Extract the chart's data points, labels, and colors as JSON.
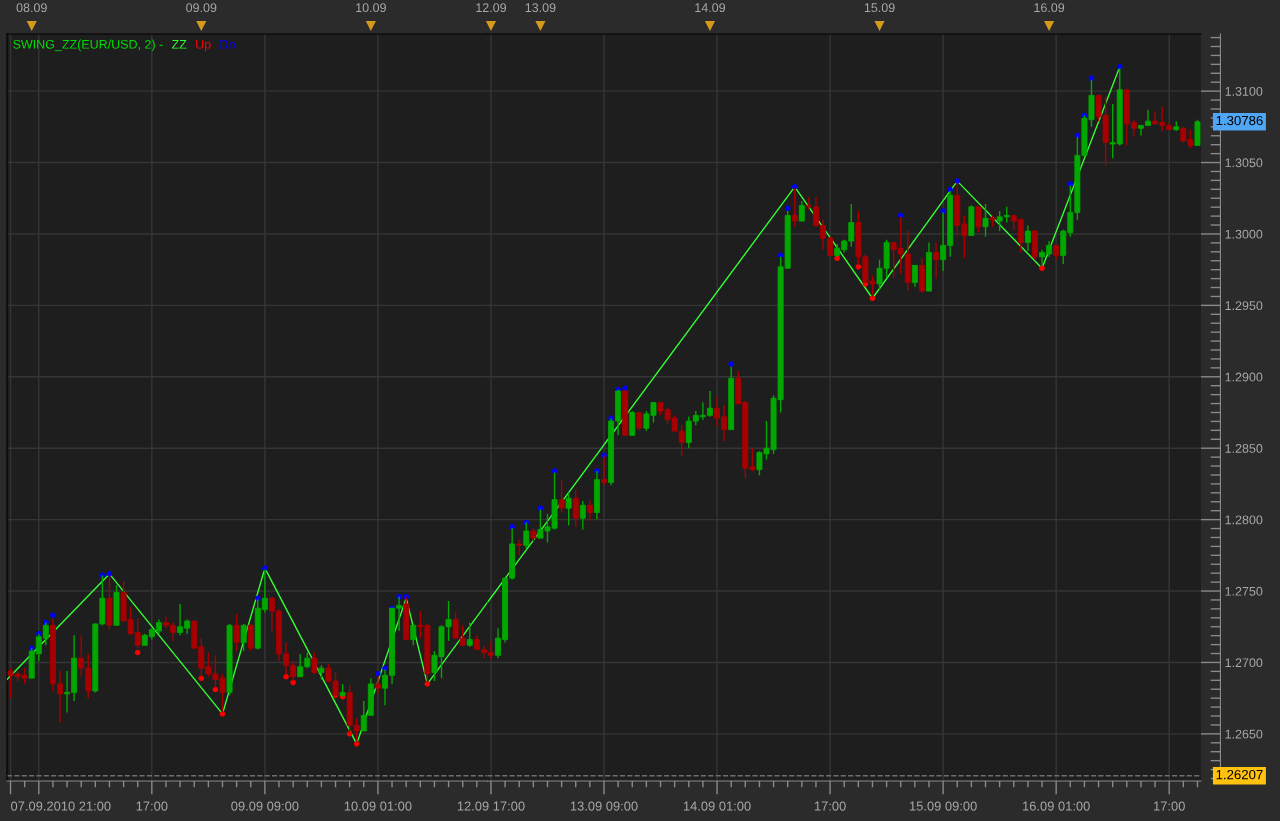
{
  "chart_data": [
    {
      "type": "candlestick",
      "legend_title": "SWING_ZZ(EUR/USD, 2) -",
      "legend": "top left",
      "x": [
        "2010-09-07T21:00",
        "2010-09-07T22:00",
        "2010-09-07T23:00",
        "2010-09-08T00:00",
        "2010-09-08T01:00",
        "2010-09-08T02:00",
        "2010-09-08T03:00",
        "2010-09-08T04:00",
        "2010-09-08T05:00",
        "2010-09-08T06:00",
        "2010-09-08T07:00",
        "2010-09-08T08:00",
        "2010-09-08T09:00",
        "2010-09-08T10:00",
        "2010-09-08T11:00",
        "2010-09-08T12:00",
        "2010-09-08T13:00",
        "2010-09-08T14:00",
        "2010-09-08T15:00",
        "2010-09-08T16:00",
        "2010-09-08T17:00",
        "2010-09-08T18:00",
        "2010-09-08T19:00",
        "2010-09-08T20:00",
        "2010-09-08T21:00",
        "2010-09-08T22:00",
        "2010-09-08T23:00",
        "2010-09-09T00:00",
        "2010-09-09T01:00",
        "2010-09-09T02:00",
        "2010-09-09T03:00",
        "2010-09-09T04:00",
        "2010-09-09T05:00",
        "2010-09-09T06:00",
        "2010-09-09T07:00",
        "2010-09-09T08:00",
        "2010-09-09T09:00",
        "2010-09-09T10:00",
        "2010-09-09T11:00",
        "2010-09-09T12:00",
        "2010-09-09T13:00",
        "2010-09-09T14:00",
        "2010-09-09T15:00",
        "2010-09-09T16:00",
        "2010-09-09T17:00",
        "2010-09-09T18:00",
        "2010-09-09T19:00",
        "2010-09-09T20:00",
        "2010-09-09T21:00",
        "2010-09-09T22:00",
        "2010-09-09T23:00",
        "2010-09-10T00:00",
        "2010-09-10T01:00",
        "2010-09-10T02:00",
        "2010-09-10T03:00",
        "2010-09-10T04:00",
        "2010-09-10T05:00",
        "2010-09-10T06:00",
        "2010-09-10T07:00",
        "2010-09-10T08:00",
        "2010-09-10T09:00",
        "2010-09-10T10:00",
        "2010-09-10T11:00",
        "2010-09-10T12:00",
        "2010-09-10T13:00",
        "2010-09-10T14:00",
        "2010-09-10T15:00",
        "2010-09-10T16:00"
      ],
      "ohlc": [
        [
          1.2694,
          1.2696,
          1.2675,
          1.2691
        ],
        [
          1.2692,
          1.2694,
          1.2687,
          1.269
        ],
        [
          1.2691,
          1.2696,
          1.2685,
          1.2689
        ],
        [
          1.2689,
          1.271,
          1.2689,
          1.2708
        ],
        [
          1.2706,
          1.272,
          1.2701,
          1.2718
        ],
        [
          1.2717,
          1.2728,
          1.2712,
          1.2726
        ],
        [
          1.2726,
          1.2731,
          1.268,
          1.2685
        ],
        [
          1.2685,
          1.2694,
          1.2658,
          1.2678
        ],
        [
          1.2678,
          1.2694,
          1.2665,
          1.2679
        ],
        [
          1.2679,
          1.2719,
          1.2673,
          1.2703
        ],
        [
          1.2703,
          1.2719,
          1.269,
          1.2696
        ],
        [
          1.2696,
          1.2706,
          1.2675,
          1.268
        ],
        [
          1.268,
          1.2727,
          1.2679,
          1.2727
        ],
        [
          1.2727,
          1.2761,
          1.2726,
          1.2745
        ],
        [
          1.2745,
          1.2761,
          1.2723,
          1.2726
        ],
        [
          1.2726,
          1.2754,
          1.2726,
          1.2749
        ],
        [
          1.2749,
          1.2757,
          1.2729,
          1.2729
        ],
        [
          1.273,
          1.2739,
          1.272,
          1.272
        ],
        [
          1.2721,
          1.2731,
          1.271,
          1.2712
        ],
        [
          1.2712,
          1.272,
          1.2712,
          1.2719
        ],
        [
          1.2718,
          1.2724,
          1.2716,
          1.2723
        ],
        [
          1.2722,
          1.273,
          1.272,
          1.2728
        ],
        [
          1.2728,
          1.2732,
          1.2724,
          1.2726
        ],
        [
          1.2726,
          1.2728,
          1.2715,
          1.2721
        ],
        [
          1.2721,
          1.2741,
          1.2719,
          1.2725
        ],
        [
          1.2724,
          1.273,
          1.272,
          1.2729
        ],
        [
          1.2729,
          1.2729,
          1.271,
          1.271
        ],
        [
          1.2711,
          1.2717,
          1.269,
          1.2696
        ],
        [
          1.2697,
          1.2707,
          1.269,
          1.2692
        ],
        [
          1.2692,
          1.2705,
          1.2682,
          1.2688
        ],
        [
          1.2689,
          1.2692,
          1.2665,
          1.2679
        ],
        [
          1.2679,
          1.2727,
          1.2677,
          1.2726
        ],
        [
          1.2726,
          1.2734,
          1.2708,
          1.2714
        ],
        [
          1.2714,
          1.2727,
          1.2708,
          1.2726
        ],
        [
          1.2726,
          1.2727,
          1.2708,
          1.271
        ],
        [
          1.271,
          1.2744,
          1.2709,
          1.2738
        ],
        [
          1.2737,
          1.2765,
          1.2735,
          1.2745
        ],
        [
          1.2745,
          1.2746,
          1.2722,
          1.2736
        ],
        [
          1.2736,
          1.2737,
          1.2701,
          1.2706
        ],
        [
          1.2706,
          1.2714,
          1.2692,
          1.2698
        ],
        [
          1.2698,
          1.2701,
          1.2687,
          1.269
        ],
        [
          1.269,
          1.2706,
          1.269,
          1.2697
        ],
        [
          1.2697,
          1.2707,
          1.2696,
          1.2703
        ],
        [
          1.2703,
          1.2707,
          1.2692,
          1.2693
        ],
        [
          1.2693,
          1.2698,
          1.2688,
          1.2696
        ],
        [
          1.2696,
          1.2699,
          1.2686,
          1.2687
        ],
        [
          1.2687,
          1.2693,
          1.2676,
          1.2677
        ],
        [
          1.2677,
          1.2685,
          1.2676,
          1.2679
        ],
        [
          1.2679,
          1.2684,
          1.265,
          1.2656
        ],
        [
          1.2656,
          1.2661,
          1.2644,
          1.2652
        ],
        [
          1.2652,
          1.2673,
          1.2652,
          1.2663
        ],
        [
          1.2663,
          1.2689,
          1.2663,
          1.2685
        ],
        [
          1.2685,
          1.2691,
          1.2678,
          1.2682
        ],
        [
          1.2682,
          1.2695,
          1.267,
          1.2691
        ],
        [
          1.2691,
          1.2738,
          1.2685,
          1.2738
        ],
        [
          1.2738,
          1.2746,
          1.2722,
          1.274
        ],
        [
          1.2741,
          1.2746,
          1.2716,
          1.2716
        ],
        [
          1.2716,
          1.2726,
          1.2712,
          1.2726
        ],
        [
          1.2726,
          1.2736,
          1.2717,
          1.2725
        ],
        [
          1.2726,
          1.2727,
          1.2686,
          1.2692
        ],
        [
          1.2693,
          1.2708,
          1.2687,
          1.2705
        ],
        [
          1.2704,
          1.2726,
          1.2689,
          1.2725
        ],
        [
          1.2725,
          1.2743,
          1.2715,
          1.273
        ],
        [
          1.273,
          1.2735,
          1.2717,
          1.2717
        ],
        [
          1.2717,
          1.2726,
          1.2712,
          1.2712
        ],
        [
          1.2712,
          1.2728,
          1.2711,
          1.2716
        ],
        [
          1.2716,
          1.2719,
          1.2709,
          1.2709
        ],
        [
          1.2709,
          1.2712,
          1.2703,
          1.2707
        ]
      ],
      "colors": [
        "#a80000",
        "#a80000",
        "#a80000",
        "#00a800",
        "#00a800",
        "#00a800",
        "#a80000",
        "#a80000",
        "#00a800",
        "#00a800",
        "#a80000",
        "#a80000",
        "#00a800",
        "#00a800",
        "#a80000",
        "#00a800",
        "#a80000",
        "#a80000",
        "#a80000",
        "#00a800",
        "#00a800",
        "#00a800",
        "#a80000",
        "#a80000",
        "#00a800",
        "#00a800",
        "#a80000",
        "#a80000",
        "#a80000",
        "#a80000",
        "#a80000",
        "#00a800",
        "#a80000",
        "#00a800",
        "#a80000",
        "#00a800",
        "#00a800",
        "#a80000",
        "#a80000",
        "#a80000",
        "#a80000",
        "#00a800",
        "#00a800",
        "#a80000",
        "#00a800",
        "#a80000",
        "#a80000",
        "#00a800",
        "#a80000",
        "#a80000",
        "#00a800",
        "#00a800",
        "#a80000",
        "#00a800",
        "#00a800",
        "#00a800",
        "#a80000",
        "#00a800",
        "#a80000",
        "#a80000",
        "#00a800",
        "#00a800",
        "#00a800",
        "#a80000",
        "#a80000",
        "#00a800",
        "#a80000",
        "#a80000"
      ],
      "series": [
        {
          "name": "ZZ",
          "type": "line",
          "color": "#33ff33",
          "x": [
            "2010-09-07T20:30",
            "2010-09-08T11:00",
            "2010-09-09T03:00",
            "2010-09-09T09:00",
            "2010-09-09T22:00",
            "2010-09-10T05:00",
            "2010-09-10T08:00",
            "2010-09-10T16:30"
          ],
          "values": [
            1.2688,
            1.2762,
            1.2664,
            1.2766,
            1.2643,
            1.2745,
            1.2685,
            1.2742
          ]
        },
        {
          "name": "Up",
          "type": "scatter",
          "marker": "circle",
          "color": "#ff0000",
          "x": [
            "2010-09-08T15:00",
            "2010-09-09T00:00",
            "2010-09-09T02:00",
            "2010-09-09T03:00",
            "2010-09-09T12:00",
            "2010-09-09T13:00",
            "2010-09-09T19:00",
            "2010-09-09T20:00",
            "2010-09-09T21:00",
            "2010-09-09T22:00",
            "2010-09-10T08:00"
          ],
          "values": [
            1.2707,
            1.2689,
            1.2681,
            1.2664,
            1.269,
            1.2686,
            1.2677,
            1.2676,
            1.265,
            1.2643,
            1.2685
          ]
        },
        {
          "name": "Dn",
          "type": "scatter",
          "marker": "circle",
          "color": "#0000ff",
          "x": [
            "2010-09-08T00:00",
            "2010-09-08T01:00",
            "2010-09-08T02:00",
            "2010-09-08T03:00",
            "2010-09-08T10:00",
            "2010-09-08T11:00",
            "2010-09-09T08:00",
            "2010-09-09T09:00",
            "2010-09-10T01:00",
            "2010-09-10T02:00",
            "2010-09-10T03:00",
            "2010-09-10T04:00",
            "2010-09-10T05:00"
          ],
          "values": [
            1.271,
            1.272,
            1.2728,
            1.2733,
            1.2761,
            1.2762,
            1.2745,
            1.2766,
            1.2692,
            1.2696,
            1.2738,
            1.2746,
            1.2746
          ]
        }
      ],
      "xlim": [
        "2010-09-07T20:30",
        "2010-09-10T16:30"
      ],
      "xticks": [
        {
          "value": "2010-09-07T21:00",
          "label": "07.09.2010 21:00"
        },
        {
          "value": "2010-09-08T01:00",
          "label": null
        },
        {
          "value": "2010-09-08T17:00",
          "label": "17:00"
        },
        {
          "value": "2010-09-09T09:00",
          "label": "09.09 09:00"
        },
        {
          "value": "2010-09-10T01:00",
          "label": "10.09 01:00"
        }
      ],
      "x2lim": [
        "2010-09-07T20:30",
        "2010-09-10T16:30"
      ],
      "x2ticks": [
        {
          "value": "2010-09-08T00:00",
          "label": "08.09"
        },
        {
          "value": "2010-09-09T00:00",
          "label": "09.09"
        },
        {
          "value": "2010-09-10T00:00",
          "label": "10.09"
        }
      ],
      "ylim": [
        1.2617,
        1.314
      ],
      "yticks": [
        1.265,
        1.27,
        1.275,
        1.28,
        1.285,
        1.29,
        1.295,
        1.3,
        1.305,
        1.31
      ],
      "tick_labels": "x",
      "ref_lines": [
        {
          "axis": "y",
          "value": 1.26207,
          "color": "#6e6e6e",
          "line_style": "dashed"
        }
      ],
      "grid": true
    },
    {
      "type": "candlestick",
      "x": [
        "2010-09-12T17:00",
        "2010-09-12T18:00",
        "2010-09-12T19:00",
        "2010-09-12T20:00",
        "2010-09-12T21:00",
        "2010-09-12T22:00",
        "2010-09-12T23:00",
        "2010-09-13T00:00",
        "2010-09-13T01:00",
        "2010-09-13T02:00",
        "2010-09-13T03:00",
        "2010-09-13T04:00",
        "2010-09-13T05:00",
        "2010-09-13T06:00",
        "2010-09-13T07:00",
        "2010-09-13T08:00",
        "2010-09-13T09:00",
        "2010-09-13T10:00",
        "2010-09-13T11:00",
        "2010-09-13T12:00",
        "2010-09-13T13:00",
        "2010-09-13T14:00",
        "2010-09-13T15:00",
        "2010-09-13T16:00",
        "2010-09-13T17:00",
        "2010-09-13T18:00",
        "2010-09-13T19:00",
        "2010-09-13T20:00",
        "2010-09-13T21:00",
        "2010-09-13T22:00",
        "2010-09-13T23:00",
        "2010-09-14T00:00",
        "2010-09-14T01:00",
        "2010-09-14T02:00",
        "2010-09-14T03:00",
        "2010-09-14T04:00",
        "2010-09-14T05:00",
        "2010-09-14T06:00",
        "2010-09-14T07:00",
        "2010-09-14T08:00",
        "2010-09-14T09:00",
        "2010-09-14T10:00",
        "2010-09-14T11:00",
        "2010-09-14T12:00",
        "2010-09-14T13:00",
        "2010-09-14T14:00",
        "2010-09-14T15:00",
        "2010-09-14T16:00",
        "2010-09-14T17:00",
        "2010-09-14T18:00",
        "2010-09-14T19:00",
        "2010-09-14T20:00",
        "2010-09-14T21:00",
        "2010-09-14T22:00",
        "2010-09-14T23:00",
        "2010-09-15T00:00",
        "2010-09-15T01:00",
        "2010-09-15T02:00",
        "2010-09-15T03:00",
        "2010-09-15T04:00",
        "2010-09-15T05:00",
        "2010-09-15T06:00",
        "2010-09-15T07:00",
        "2010-09-15T08:00",
        "2010-09-15T09:00",
        "2010-09-15T10:00",
        "2010-09-15T11:00",
        "2010-09-15T12:00",
        "2010-09-15T13:00",
        "2010-09-15T14:00",
        "2010-09-15T15:00",
        "2010-09-15T16:00",
        "2010-09-15T17:00",
        "2010-09-15T18:00",
        "2010-09-15T19:00",
        "2010-09-15T20:00",
        "2010-09-15T21:00",
        "2010-09-15T22:00",
        "2010-09-15T23:00",
        "2010-09-16T00:00",
        "2010-09-16T01:00",
        "2010-09-16T02:00",
        "2010-09-16T03:00",
        "2010-09-16T04:00",
        "2010-09-16T05:00",
        "2010-09-16T06:00",
        "2010-09-16T07:00",
        "2010-09-16T08:00",
        "2010-09-16T09:00",
        "2010-09-16T10:00",
        "2010-09-16T11:00",
        "2010-09-16T12:00",
        "2010-09-16T13:00",
        "2010-09-16T14:00",
        "2010-09-16T15:00",
        "2010-09-16T16:00",
        "2010-09-16T17:00",
        "2010-09-16T18:00",
        "2010-09-16T19:00",
        "2010-09-16T20:00",
        "2010-09-16T21:00"
      ],
      "ohlc": [
        [
          1.2707,
          1.2715,
          1.2702,
          1.2705
        ],
        [
          1.2705,
          1.2724,
          1.2703,
          1.2717
        ],
        [
          1.2716,
          1.2759,
          1.2714,
          1.2759
        ],
        [
          1.2759,
          1.2794,
          1.2758,
          1.2783
        ],
        [
          1.2783,
          1.2786,
          1.2775,
          1.2782
        ],
        [
          1.2782,
          1.2798,
          1.278,
          1.2792
        ],
        [
          1.2792,
          1.2794,
          1.2785,
          1.2787
        ],
        [
          1.2787,
          1.2807,
          1.2787,
          1.2793
        ],
        [
          1.2792,
          1.2804,
          1.2784,
          1.2795
        ],
        [
          1.2794,
          1.2833,
          1.2793,
          1.2814
        ],
        [
          1.2814,
          1.2828,
          1.2805,
          1.2808
        ],
        [
          1.2808,
          1.2819,
          1.2796,
          1.2815
        ],
        [
          1.2815,
          1.2821,
          1.2795,
          1.2801
        ],
        [
          1.2801,
          1.2813,
          1.2793,
          1.281
        ],
        [
          1.281,
          1.2814,
          1.2799,
          1.2805
        ],
        [
          1.2805,
          1.2834,
          1.28,
          1.2828
        ],
        [
          1.2828,
          1.2845,
          1.2824,
          1.2826
        ],
        [
          1.2826,
          1.2871,
          1.2824,
          1.2869
        ],
        [
          1.2869,
          1.2891,
          1.2859,
          1.289
        ],
        [
          1.289,
          1.2891,
          1.2859,
          1.2859
        ],
        [
          1.2859,
          1.2876,
          1.2859,
          1.2875
        ],
        [
          1.2875,
          1.2875,
          1.2863,
          1.2864
        ],
        [
          1.2864,
          1.2876,
          1.2862,
          1.2874
        ],
        [
          1.2873,
          1.2882,
          1.2868,
          1.2882
        ],
        [
          1.2882,
          1.2882,
          1.2873,
          1.2876
        ],
        [
          1.2877,
          1.2878,
          1.2867,
          1.287
        ],
        [
          1.2871,
          1.2873,
          1.2862,
          1.2862
        ],
        [
          1.2862,
          1.2866,
          1.2844,
          1.2854
        ],
        [
          1.2854,
          1.2872,
          1.285,
          1.2869
        ],
        [
          1.2869,
          1.2876,
          1.2866,
          1.2873
        ],
        [
          1.2872,
          1.2882,
          1.287,
          1.2873
        ],
        [
          1.2873,
          1.289,
          1.2872,
          1.2878
        ],
        [
          1.2878,
          1.2886,
          1.2865,
          1.2871
        ],
        [
          1.2872,
          1.288,
          1.2855,
          1.2863
        ],
        [
          1.2863,
          1.2907,
          1.2863,
          1.2899
        ],
        [
          1.2899,
          1.2904,
          1.2881,
          1.2881
        ],
        [
          1.2882,
          1.2883,
          1.2829,
          1.2836
        ],
        [
          1.2837,
          1.285,
          1.2834,
          1.2835
        ],
        [
          1.2835,
          1.2848,
          1.2831,
          1.2847
        ],
        [
          1.2846,
          1.2869,
          1.2842,
          1.285
        ],
        [
          1.2849,
          1.2887,
          1.2846,
          1.2885
        ],
        [
          1.2884,
          1.2984,
          1.2875,
          1.2977
        ],
        [
          1.2976,
          1.3016,
          1.2976,
          1.3013
        ],
        [
          1.3013,
          1.3032,
          1.3005,
          1.3009
        ],
        [
          1.3009,
          1.3023,
          1.3009,
          1.302
        ],
        [
          1.302,
          1.3026,
          1.3017,
          1.3019
        ],
        [
          1.3019,
          1.3026,
          1.3005,
          1.3006
        ],
        [
          1.3006,
          1.301,
          1.2989,
          1.2997
        ],
        [
          1.2997,
          1.2998,
          1.2985,
          1.2985
        ],
        [
          1.2985,
          1.2993,
          1.2984,
          1.299
        ],
        [
          1.2989,
          1.2996,
          1.2987,
          1.2995
        ],
        [
          1.2995,
          1.3021,
          1.2991,
          1.3008
        ],
        [
          1.3008,
          1.3016,
          1.2978,
          1.2984
        ],
        [
          1.2984,
          1.2986,
          1.2966,
          1.2966
        ],
        [
          1.2967,
          1.2971,
          1.2956,
          1.2965
        ],
        [
          1.2965,
          1.2982,
          1.2961,
          1.2976
        ],
        [
          1.2976,
          1.2996,
          1.2969,
          1.2994
        ],
        [
          1.2994,
          1.2994,
          1.2969,
          1.2989
        ],
        [
          1.299,
          1.3012,
          1.2972,
          1.2986
        ],
        [
          1.2986,
          1.3002,
          1.296,
          1.2966
        ],
        [
          1.2966,
          1.2978,
          1.2963,
          1.2978
        ],
        [
          1.2978,
          1.2983,
          1.2959,
          1.296
        ],
        [
          1.296,
          1.2994,
          1.296,
          1.2987
        ],
        [
          1.2987,
          1.2994,
          1.2969,
          1.2982
        ],
        [
          1.2982,
          1.3015,
          1.2974,
          1.2992
        ],
        [
          1.2992,
          1.303,
          1.2984,
          1.3027
        ],
        [
          1.3027,
          1.3036,
          1.2998,
          1.3006
        ],
        [
          1.3007,
          1.3013,
          1.2983,
          1.2999
        ],
        [
          1.2999,
          1.302,
          1.2999,
          1.3019
        ],
        [
          1.3019,
          1.3019,
          1.3001,
          1.3005
        ],
        [
          1.3005,
          1.3021,
          1.2998,
          1.3011
        ],
        [
          1.3011,
          1.3013,
          1.3005,
          1.301
        ],
        [
          1.3009,
          1.3016,
          1.3002,
          1.3012
        ],
        [
          1.3012,
          1.3019,
          1.3008,
          1.3013
        ],
        [
          1.3013,
          1.3013,
          1.3003,
          1.3009
        ],
        [
          1.301,
          1.3011,
          1.2987,
          1.2994
        ],
        [
          1.2994,
          1.3006,
          1.2988,
          1.3002
        ],
        [
          1.3002,
          1.3003,
          1.2982,
          1.2984
        ],
        [
          1.2984,
          1.2989,
          1.2978,
          1.2987
        ],
        [
          1.2986,
          1.2995,
          1.2984,
          1.2992
        ],
        [
          1.2992,
          1.2992,
          1.2982,
          1.2985
        ],
        [
          1.2985,
          1.3003,
          1.2979,
          1.3002
        ],
        [
          1.3001,
          1.3034,
          1.2998,
          1.3015
        ],
        [
          1.3015,
          1.3068,
          1.301,
          1.3055
        ],
        [
          1.3055,
          1.3083,
          1.3054,
          1.3081
        ],
        [
          1.308,
          1.3108,
          1.3075,
          1.3097
        ],
        [
          1.3097,
          1.3097,
          1.3079,
          1.3082
        ],
        [
          1.3083,
          1.3096,
          1.3048,
          1.3064
        ],
        [
          1.3063,
          1.3091,
          1.3053,
          1.3064
        ],
        [
          1.3063,
          1.3116,
          1.3062,
          1.3101
        ],
        [
          1.3101,
          1.3101,
          1.3062,
          1.3077
        ],
        [
          1.3078,
          1.308,
          1.3068,
          1.3074
        ],
        [
          1.3074,
          1.3076,
          1.3069,
          1.3076
        ],
        [
          1.3076,
          1.3087,
          1.3076,
          1.3079
        ],
        [
          1.3079,
          1.3086,
          1.3077,
          1.3077
        ],
        [
          1.3078,
          1.3089,
          1.3072,
          1.3076
        ],
        [
          1.3076,
          1.3078,
          1.3073,
          1.3073
        ],
        [
          1.3073,
          1.3079,
          1.3072,
          1.3075
        ],
        [
          1.3074,
          1.3075,
          1.3064,
          1.3065
        ],
        [
          1.3066,
          1.3073,
          1.306,
          1.3062
        ],
        [
          1.3062,
          1.308,
          1.3062,
          1.30786
        ]
      ],
      "colors": [
        "#a80000",
        "#00a800",
        "#00a800",
        "#00a800",
        "#a80000",
        "#00a800",
        "#a80000",
        "#00a800",
        "#00a800",
        "#00a800",
        "#a80000",
        "#00a800",
        "#a80000",
        "#00a800",
        "#a80000",
        "#00a800",
        "#a80000",
        "#00a800",
        "#00a800",
        "#a80000",
        "#00a800",
        "#a80000",
        "#00a800",
        "#00a800",
        "#a80000",
        "#a80000",
        "#a80000",
        "#a80000",
        "#00a800",
        "#00a800",
        "#00a800",
        "#00a800",
        "#a80000",
        "#a80000",
        "#00a800",
        "#a80000",
        "#a80000",
        "#a80000",
        "#00a800",
        "#00a800",
        "#00a800",
        "#00a800",
        "#00a800",
        "#a80000",
        "#00a800",
        "#a80000",
        "#a80000",
        "#a80000",
        "#a80000",
        "#00a800",
        "#00a800",
        "#00a800",
        "#a80000",
        "#a80000",
        "#a80000",
        "#00a800",
        "#00a800",
        "#a80000",
        "#a80000",
        "#a80000",
        "#00a800",
        "#a80000",
        "#00a800",
        "#a80000",
        "#00a800",
        "#00a800",
        "#a80000",
        "#a80000",
        "#00a800",
        "#a80000",
        "#00a800",
        "#a80000",
        "#00a800",
        "#00a800",
        "#a80000",
        "#a80000",
        "#00a800",
        "#a80000",
        "#00a800",
        "#00a800",
        "#a80000",
        "#00a800",
        "#00a800",
        "#00a800",
        "#00a800",
        "#00a800",
        "#a80000",
        "#a80000",
        "#00a800",
        "#00a800",
        "#a80000",
        "#a80000",
        "#00a800",
        "#00a800",
        "#a80000",
        "#a80000",
        "#a80000",
        "#00a800",
        "#a80000",
        "#a80000",
        "#00a800"
      ],
      "series": [
        {
          "type": "line",
          "color": "#33ff33",
          "x": [
            "2010-09-12T16:30",
            "2010-09-14T12:00",
            "2010-09-14T23:00",
            "2010-09-15T11:00",
            "2010-09-15T23:00",
            "2010-09-16T10:00"
          ],
          "values": [
            1.2742,
            1.3033,
            1.2955,
            1.3037,
            1.2976,
            1.3117
          ]
        },
        {
          "type": "scatter",
          "marker": "circle",
          "color": "#ff0000",
          "x": [
            "2010-09-14T18:00",
            "2010-09-14T21:00",
            "2010-09-14T22:00",
            "2010-09-14T23:00",
            "2010-09-15T23:00"
          ],
          "values": [
            1.2983,
            1.2977,
            1.2965,
            1.2955,
            1.2976
          ]
        },
        {
          "type": "scatter",
          "marker": "circle",
          "color": "#0000ff",
          "x": [
            "2010-09-12T20:00",
            "2010-09-12T22:00",
            "2010-09-13T00:00",
            "2010-09-13T02:00",
            "2010-09-13T08:00",
            "2010-09-13T09:00",
            "2010-09-13T10:00",
            "2010-09-13T11:00",
            "2010-09-13T12:00",
            "2010-09-14T03:00",
            "2010-09-14T10:00",
            "2010-09-14T11:00",
            "2010-09-14T12:00",
            "2010-09-15T03:00",
            "2010-09-15T09:00",
            "2010-09-15T10:00",
            "2010-09-15T11:00",
            "2010-09-16T03:00",
            "2010-09-16T04:00",
            "2010-09-16T05:00",
            "2010-09-16T06:00",
            "2010-09-16T10:00"
          ],
          "values": [
            1.2795,
            1.2798,
            1.2808,
            1.2834,
            1.2834,
            1.2845,
            1.2871,
            1.2891,
            1.2892,
            1.2909,
            1.2985,
            1.3018,
            1.3033,
            1.3013,
            1.3016,
            1.3031,
            1.3037,
            1.3035,
            1.3069,
            1.3083,
            1.3109,
            1.3117
          ]
        }
      ],
      "xlim": [
        "2010-09-12T16:30",
        "2010-09-16T21:30"
      ],
      "xticks": [
        {
          "value": "2010-09-12T17:00",
          "label": "12.09 17:00"
        },
        {
          "value": "2010-09-13T09:00",
          "label": "13.09 09:00"
        },
        {
          "value": "2010-09-14T01:00",
          "label": "14.09 01:00"
        },
        {
          "value": "2010-09-14T17:00",
          "label": "17:00"
        },
        {
          "value": "2010-09-15T09:00",
          "label": "15.09 09:00"
        },
        {
          "value": "2010-09-16T01:00",
          "label": "16.09 01:00"
        },
        {
          "value": "2010-09-16T17:00",
          "label": "17:00"
        }
      ],
      "x2lim": [
        "2010-09-12T16:30",
        "2010-09-16T21:30"
      ],
      "x2ticks": [
        {
          "value": "2010-09-12T17:00",
          "label": "12.09"
        },
        {
          "value": "2010-09-13T00:00",
          "label": "13.09"
        },
        {
          "value": "2010-09-14T00:00",
          "label": "14.09"
        },
        {
          "value": "2010-09-15T00:00",
          "label": "15.09"
        },
        {
          "value": "2010-09-16T00:00",
          "label": "16.09"
        }
      ],
      "ylim": [
        1.2617,
        1.314
      ],
      "yticks": [
        {
          "value": 1.265,
          "label": "1.2650"
        },
        {
          "value": 1.27,
          "label": "1.2700"
        },
        {
          "value": 1.275,
          "label": "1.2750"
        },
        {
          "value": 1.28,
          "label": "1.2800"
        },
        {
          "value": 1.285,
          "label": "1.2850"
        },
        {
          "value": 1.29,
          "label": "1.2900"
        },
        {
          "value": 1.295,
          "label": "1.2950"
        },
        {
          "value": 1.3,
          "label": "1.3000"
        },
        {
          "value": 1.305,
          "label": "1.3050"
        },
        {
          "value": 1.31,
          "label": "1.3100"
        }
      ],
      "ref_lines": [
        {
          "axis": "y",
          "value": 1.26207,
          "label": "1.26207",
          "color": "#6e6e6e",
          "line_style": "dashed"
        }
      ],
      "annotations": [
        "1.30786"
      ],
      "grid": true
    }
  ]
}
